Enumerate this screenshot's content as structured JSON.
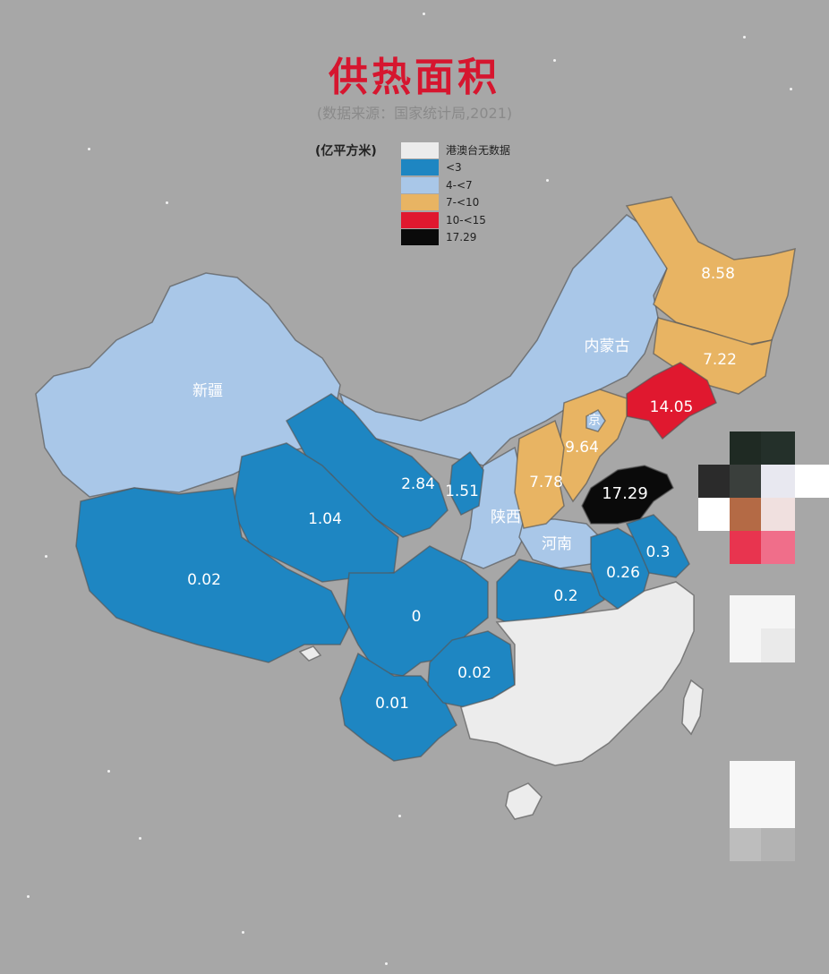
{
  "title": "供热面积",
  "subtitle": "(数据来源：国家统计局,2021)",
  "legend": {
    "unit": "(亿平方米)",
    "items": [
      {
        "label": "港澳台无数据",
        "color": "#ececec"
      },
      {
        "label": "<3",
        "color": "#1e86c2"
      },
      {
        "label": "4-<7",
        "color": "#a9c7e8"
      },
      {
        "label": "7-<10",
        "color": "#e8b463"
      },
      {
        "label": "10-<15",
        "color": "#e0182f"
      },
      {
        "label": "17.29",
        "color": "#0a0a0a"
      }
    ]
  },
  "regions": {
    "xinjiang": "新疆",
    "neimenggu": "内蒙古",
    "shaanxi": "陕西",
    "henan": "河南",
    "beijing": "京"
  },
  "values": {
    "heilongjiang": "8.58",
    "jilin": "7.22",
    "liaoning": "14.05",
    "hebei_beijing": "9.64",
    "shanxi": "7.78",
    "shandong": "17.29",
    "gansu": "2.84",
    "ningxia": "1.51",
    "qinghai": "1.04",
    "tibet": "0.02",
    "sichuan": "0",
    "yunnan": "0.01",
    "guizhou": "0.02",
    "hubei": "0.2",
    "anhui": "0.26",
    "jiangsu": "0.3"
  }
}
